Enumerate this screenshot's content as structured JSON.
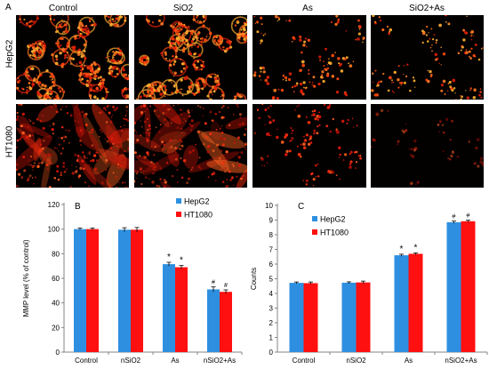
{
  "figure": {
    "panel_a_letter": "A",
    "columns": [
      "Control",
      "SiO2",
      "As",
      "SiO2+As"
    ],
    "rows": [
      "HepG2",
      "HT1080"
    ]
  },
  "colors": {
    "hepg2": "#2e8fe0",
    "ht1080": "#ff1010",
    "signal": "#ff3010",
    "background": "#030000"
  },
  "chart_data": [
    {
      "type": "bar",
      "panel_letter": "B",
      "categories": [
        "Control",
        "nSiO2",
        "As",
        "nSiO2+As"
      ],
      "series": [
        {
          "name": "HepG2",
          "values": [
            100,
            99.5,
            71.5,
            51
          ],
          "errors": [
            0.8,
            1.6,
            1.5,
            2.0
          ],
          "marks": [
            "",
            "",
            "*",
            "#"
          ]
        },
        {
          "name": "HT1080",
          "values": [
            100,
            99.5,
            69,
            49
          ],
          "errors": [
            0.8,
            1.8,
            1.4,
            1.6
          ],
          "marks": [
            "",
            "",
            "*",
            "#"
          ]
        }
      ],
      "ylabel": "MMP level (% of control)",
      "ylim": [
        0,
        120
      ],
      "yticks": [
        0,
        20,
        40,
        60,
        80,
        100,
        120
      ],
      "legend": "top-right",
      "grid": false
    },
    {
      "type": "bar",
      "panel_letter": "C",
      "categories": [
        "Control",
        "nSiO2",
        "As",
        "nSiO2+As"
      ],
      "series": [
        {
          "name": "HepG2",
          "values": [
            4.72,
            4.73,
            6.6,
            8.85
          ],
          "errors": [
            0.06,
            0.06,
            0.07,
            0.08
          ],
          "marks": [
            "",
            "",
            "*",
            "#"
          ]
        },
        {
          "name": "HT1080",
          "values": [
            4.7,
            4.75,
            6.7,
            8.92
          ],
          "errors": [
            0.08,
            0.09,
            0.06,
            0.07
          ],
          "marks": [
            "",
            "",
            "*",
            "#"
          ]
        }
      ],
      "ylabel": "Counts",
      "ylim": [
        0,
        10
      ],
      "yticks": [
        0,
        1,
        2,
        3,
        4,
        5,
        6,
        7,
        8,
        9,
        10
      ],
      "legend": "top-left",
      "grid": false
    }
  ]
}
